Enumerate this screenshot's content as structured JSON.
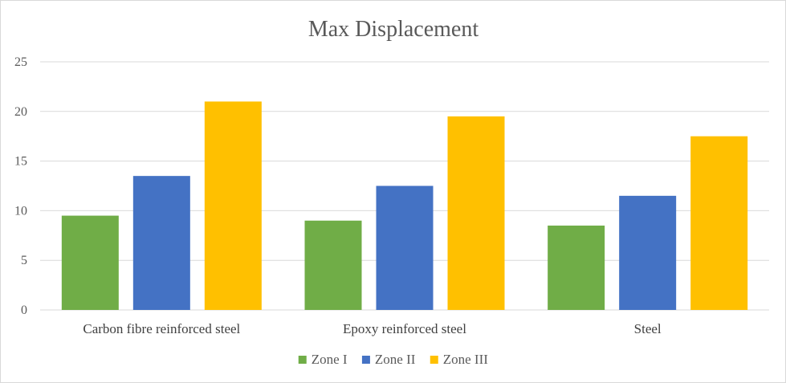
{
  "chart_data": {
    "type": "bar",
    "title": "Max Displacement",
    "xlabel": "",
    "ylabel": "",
    "categories": [
      "Carbon fibre reinforced steel",
      "Epoxy reinforced steel",
      "Steel"
    ],
    "series": [
      {
        "name": "Zone I",
        "color": "#70ad47",
        "values": [
          9.5,
          9.0,
          8.5
        ]
      },
      {
        "name": "Zone II",
        "color": "#4472c4",
        "values": [
          13.5,
          12.5,
          11.5
        ]
      },
      {
        "name": "Zone III",
        "color": "#ffc000",
        "values": [
          21.0,
          19.5,
          17.5
        ]
      }
    ],
    "ylim": [
      0,
      25
    ],
    "yticks": [
      "0",
      "5",
      "10",
      "15",
      "20",
      "25"
    ],
    "grid": true,
    "legend_position": "bottom",
    "gridline_color": "#d9d9d9"
  }
}
